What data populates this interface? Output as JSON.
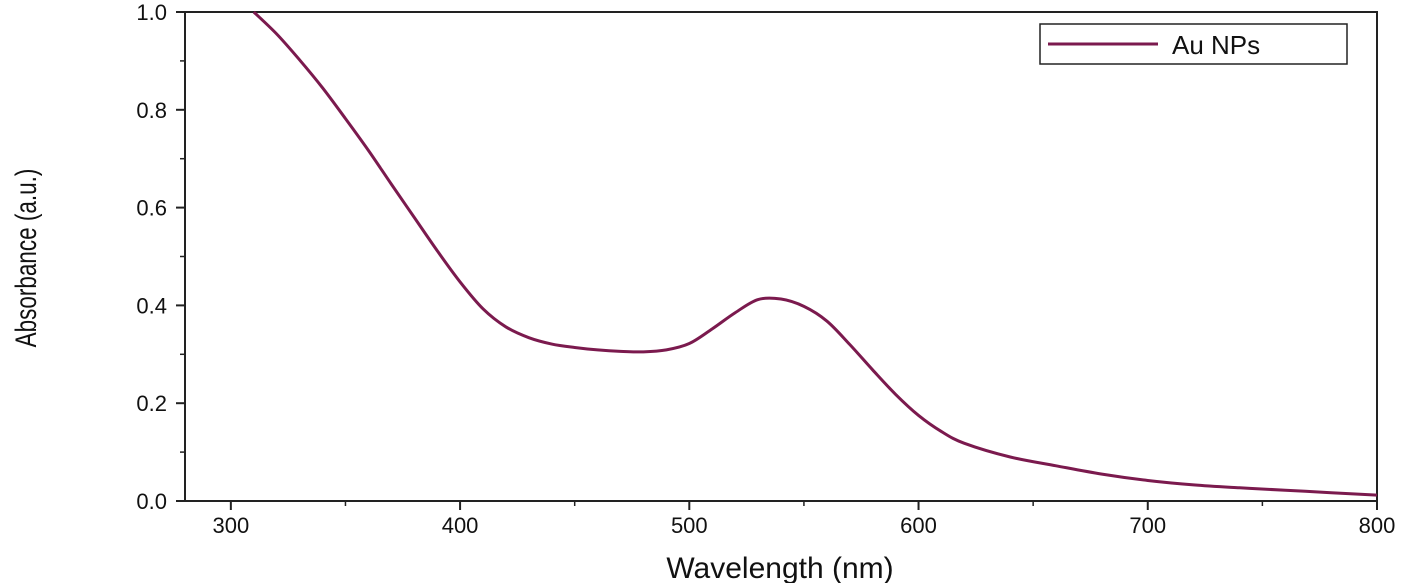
{
  "chart_data": {
    "type": "line",
    "xlabel": "Wavelength (nm)",
    "ylabel": "Absorbance (a.u.)",
    "xlim": [
      280,
      800
    ],
    "ylim": [
      0.0,
      1.0
    ],
    "x_ticks": [
      "300",
      "400",
      "500",
      "600",
      "700",
      "800"
    ],
    "y_ticks": [
      "0.0",
      "0.2",
      "0.4",
      "0.6",
      "0.8",
      "1.0"
    ],
    "grid": false,
    "legend_position": "top-right",
    "series": [
      {
        "name": "Au NPs",
        "color": "#7B1A4E",
        "x": [
          310,
          320,
          330,
          340,
          350,
          360,
          370,
          380,
          390,
          400,
          410,
          420,
          430,
          440,
          450,
          460,
          470,
          480,
          490,
          500,
          510,
          520,
          530,
          540,
          550,
          560,
          570,
          580,
          590,
          600,
          610,
          620,
          640,
          660,
          680,
          700,
          720,
          740,
          760,
          780,
          800
        ],
        "y": [
          1.0,
          0.955,
          0.902,
          0.845,
          0.782,
          0.717,
          0.648,
          0.58,
          0.512,
          0.448,
          0.393,
          0.356,
          0.334,
          0.321,
          0.314,
          0.309,
          0.306,
          0.305,
          0.309,
          0.322,
          0.352,
          0.385,
          0.412,
          0.413,
          0.398,
          0.368,
          0.32,
          0.268,
          0.218,
          0.175,
          0.142,
          0.118,
          0.09,
          0.072,
          0.055,
          0.042,
          0.033,
          0.027,
          0.022,
          0.017,
          0.012
        ]
      }
    ]
  }
}
